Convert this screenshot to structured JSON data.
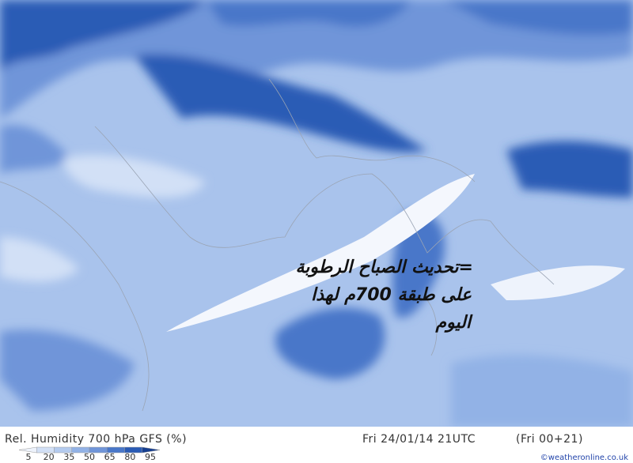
{
  "map": {
    "annotation": [
      "=تحديث الصباح الرطوبة",
      "على طبقة 700م لهذا",
      "اليوم"
    ]
  },
  "footer": {
    "title": "Rel. Humidity 700 hPa GFS (%)",
    "time": "Fri 24/01/14 21UTC",
    "run": "(Fri 00+21)",
    "credit": "©weatheronline.co.uk"
  },
  "legend": {
    "ticks": [
      5,
      20,
      35,
      50,
      65,
      80,
      95
    ],
    "colors": [
      "#eef3fc",
      "#d2e0f6",
      "#b4cbef",
      "#92b2e6",
      "#6f95d9",
      "#4977c9",
      "#2a5bb5",
      "#173f8f"
    ]
  }
}
